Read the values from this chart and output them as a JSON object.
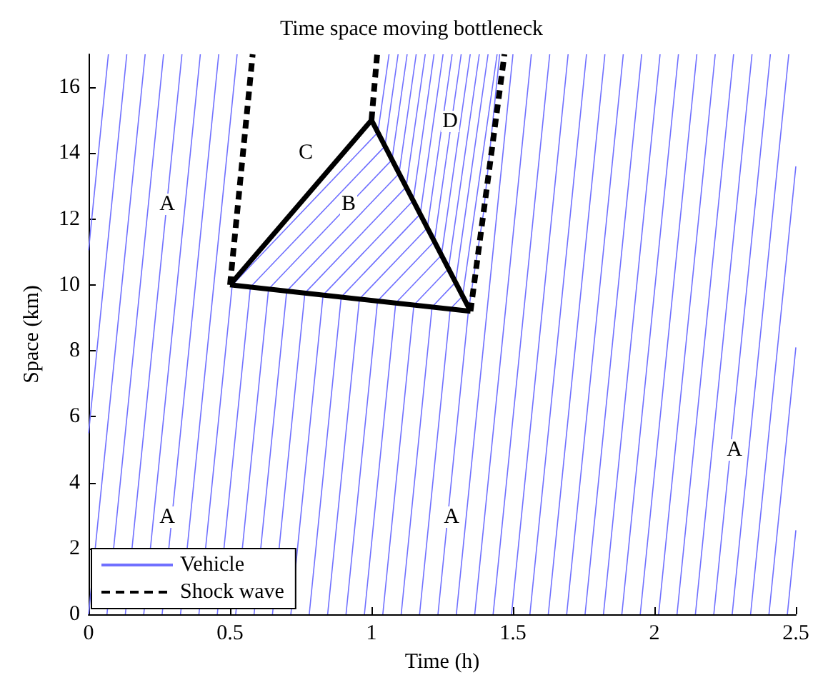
{
  "chart_data": {
    "type": "line",
    "title": "Time space moving bottleneck",
    "xlabel": "Time (h)",
    "ylabel": "Space (km)",
    "xlim": [
      0,
      2.5
    ],
    "xticks": [
      0,
      0.5,
      1,
      1.5,
      2,
      2.5
    ],
    "ylim": [
      0,
      17
    ],
    "yticks": [
      0,
      2,
      4,
      6,
      8,
      10,
      12,
      14,
      16
    ],
    "grid": false,
    "legend": "bottom left",
    "marker": "none",
    "annotations": [
      "A",
      "C",
      "B",
      "D",
      "A",
      "A",
      "A"
    ],
    "series": [
      {
        "name": "Vehicle",
        "color": "#7070ff",
        "line_style": "solid",
        "x": [
          0,
          0.07
        ],
        "values": [
          11.05,
          17
        ]
      },
      {
        "color": "#7070ff",
        "line_style": "solid",
        "x": [
          0,
          0.135
        ],
        "values": [
          5.5,
          17
        ]
      },
      {
        "color": "#7070ff",
        "line_style": "solid",
        "x": [
          0,
          0.2
        ],
        "values": [
          0,
          17
        ]
      },
      {
        "color": "#7070ff",
        "line_style": "solid",
        "x": [
          0.065,
          0.265
        ],
        "values": [
          0,
          17
        ]
      },
      {
        "color": "#7070ff",
        "line_style": "solid",
        "x": [
          0.13,
          0.33
        ],
        "values": [
          0,
          17
        ]
      },
      {
        "color": "#7070ff",
        "line_style": "solid",
        "x": [
          0.195,
          0.395
        ],
        "values": [
          0,
          17
        ]
      },
      {
        "color": "#7070ff",
        "line_style": "solid",
        "x": [
          0.26,
          0.46
        ],
        "values": [
          0,
          17
        ]
      },
      {
        "color": "#7070ff",
        "line_style": "solid",
        "x": [
          0.325,
          0.525
        ],
        "values": [
          0,
          17
        ]
      },
      {
        "color": "#7070ff",
        "line_style": "solid",
        "x": [
          0.39,
          0.5076,
          1.0226,
          1.062
        ],
        "values": [
          0,
          9.99,
          14.63,
          17
        ]
      },
      {
        "color": "#7070ff",
        "line_style": "solid",
        "x": [
          0.455,
          0.5719,
          1.0476,
          1.094
        ],
        "values": [
          0,
          9.93,
          14.21,
          17
        ]
      },
      {
        "color": "#7070ff",
        "line_style": "solid",
        "x": [
          0.52,
          0.6361,
          1.0725,
          1.126
        ],
        "values": [
          0,
          9.87,
          13.8,
          17
        ]
      },
      {
        "color": "#7070ff",
        "line_style": "solid",
        "x": [
          0.585,
          0.7003,
          1.0975,
          1.158
        ],
        "values": [
          0,
          9.81,
          13.38,
          17
        ]
      },
      {
        "color": "#7070ff",
        "line_style": "solid",
        "x": [
          0.65,
          0.7645,
          1.1224,
          1.19
        ],
        "values": [
          0,
          9.75,
          12.97,
          17
        ]
      },
      {
        "color": "#7070ff",
        "line_style": "solid",
        "x": [
          0.715,
          0.8288,
          1.1474,
          1.221
        ],
        "values": [
          0,
          9.69,
          12.56,
          17
        ]
      },
      {
        "color": "#7070ff",
        "line_style": "solid",
        "x": [
          0.78,
          0.893,
          1.1723,
          1.253
        ],
        "values": [
          0,
          9.63,
          12.15,
          17
        ]
      },
      {
        "color": "#7070ff",
        "line_style": "solid",
        "x": [
          0.845,
          0.9572,
          1.1973,
          1.285
        ],
        "values": [
          0,
          9.57,
          11.73,
          17
        ]
      },
      {
        "color": "#7070ff",
        "line_style": "solid",
        "x": [
          0.91,
          1.0214,
          1.2222,
          1.317
        ],
        "values": [
          0,
          9.51,
          11.32,
          17
        ]
      },
      {
        "color": "#7070ff",
        "line_style": "solid",
        "x": [
          0.975,
          1.0857,
          1.2472,
          1.349
        ],
        "values": [
          0,
          9.45,
          10.9,
          17
        ]
      },
      {
        "color": "#7070ff",
        "line_style": "solid",
        "x": [
          1.04,
          1.1499,
          1.2721,
          1.381
        ],
        "values": [
          0,
          9.39,
          10.49,
          17
        ]
      },
      {
        "color": "#7070ff",
        "line_style": "solid",
        "x": [
          1.105,
          1.2141,
          1.2971,
          1.412
        ],
        "values": [
          0,
          9.33,
          10.08,
          17
        ]
      },
      {
        "color": "#7070ff",
        "line_style": "solid",
        "x": [
          1.17,
          1.2784,
          1.3221,
          1.444
        ],
        "values": [
          0,
          9.27,
          9.66,
          17
        ]
      },
      {
        "color": "#7070ff",
        "line_style": "solid",
        "x": [
          1.235,
          1.3426,
          1.396,
          1.453
        ],
        "values": [
          0,
          9.21,
          12.19,
          17
        ]
      },
      {
        "color": "#7070ff",
        "line_style": "solid",
        "x": [
          1.3,
          1.5
        ],
        "values": [
          0,
          17
        ]
      },
      {
        "color": "#7070ff",
        "line_style": "solid",
        "x": [
          1.365,
          1.565
        ],
        "values": [
          0,
          17
        ]
      },
      {
        "color": "#7070ff",
        "line_style": "solid",
        "x": [
          1.43,
          1.63
        ],
        "values": [
          0,
          17
        ]
      },
      {
        "color": "#7070ff",
        "line_style": "solid",
        "x": [
          1.495,
          1.695
        ],
        "values": [
          0,
          17
        ]
      },
      {
        "color": "#7070ff",
        "line_style": "solid",
        "x": [
          1.56,
          1.76
        ],
        "values": [
          0,
          17
        ]
      },
      {
        "color": "#7070ff",
        "line_style": "solid",
        "x": [
          1.625,
          1.825
        ],
        "values": [
          0,
          17
        ]
      },
      {
        "color": "#7070ff",
        "line_style": "solid",
        "x": [
          1.69,
          1.89
        ],
        "values": [
          0,
          17
        ]
      },
      {
        "color": "#7070ff",
        "line_style": "solid",
        "x": [
          1.755,
          1.955
        ],
        "values": [
          0,
          17
        ]
      },
      {
        "color": "#7070ff",
        "line_style": "solid",
        "x": [
          1.82,
          2.02
        ],
        "values": [
          0,
          17
        ]
      },
      {
        "color": "#7070ff",
        "line_style": "solid",
        "x": [
          1.885,
          2.085
        ],
        "values": [
          0,
          17
        ]
      },
      {
        "color": "#7070ff",
        "line_style": "solid",
        "x": [
          1.95,
          2.15
        ],
        "values": [
          0,
          17
        ]
      },
      {
        "color": "#7070ff",
        "line_style": "solid",
        "x": [
          2.015,
          2.215
        ],
        "values": [
          0,
          17
        ]
      },
      {
        "color": "#7070ff",
        "line_style": "solid",
        "x": [
          2.08,
          2.28
        ],
        "values": [
          0,
          17
        ]
      },
      {
        "color": "#7070ff",
        "line_style": "solid",
        "x": [
          2.145,
          2.345
        ],
        "values": [
          0,
          17
        ]
      },
      {
        "color": "#7070ff",
        "line_style": "solid",
        "x": [
          2.21,
          2.41
        ],
        "values": [
          0,
          17
        ]
      },
      {
        "color": "#7070ff",
        "line_style": "solid",
        "x": [
          2.275,
          2.475
        ],
        "values": [
          0,
          17
        ]
      },
      {
        "color": "#7070ff",
        "line_style": "solid",
        "x": [
          2.34,
          2.5
        ],
        "values": [
          0,
          13.6
        ]
      },
      {
        "color": "#7070ff",
        "line_style": "solid",
        "x": [
          2.405,
          2.5
        ],
        "values": [
          0,
          8.1
        ]
      },
      {
        "color": "#7070ff",
        "line_style": "solid",
        "x": [
          2.47,
          2.5
        ],
        "values": [
          0,
          2.55
        ]
      },
      {
        "color": "#000000",
        "line_style": "solid",
        "x": [
          0.5,
          1.0,
          1.35
        ],
        "values": [
          10,
          15,
          9.2
        ]
      },
      {
        "color": "#000000",
        "line_style": "solid",
        "x": [
          1.35,
          0.5
        ],
        "values": [
          9.2,
          10
        ]
      },
      {
        "name": "Shock wave",
        "color": "#000000",
        "line_style": "dashed",
        "x": [
          0.5,
          0.58
        ],
        "values": [
          10,
          17
        ]
      },
      {
        "color": "#000000",
        "line_style": "dashed",
        "x": [
          1.0,
          1.02
        ],
        "values": [
          15,
          17
        ]
      },
      {
        "color": "#000000",
        "line_style": "dashed",
        "x": [
          1.35,
          1.47
        ],
        "values": [
          9.2,
          17
        ]
      }
    ]
  }
}
